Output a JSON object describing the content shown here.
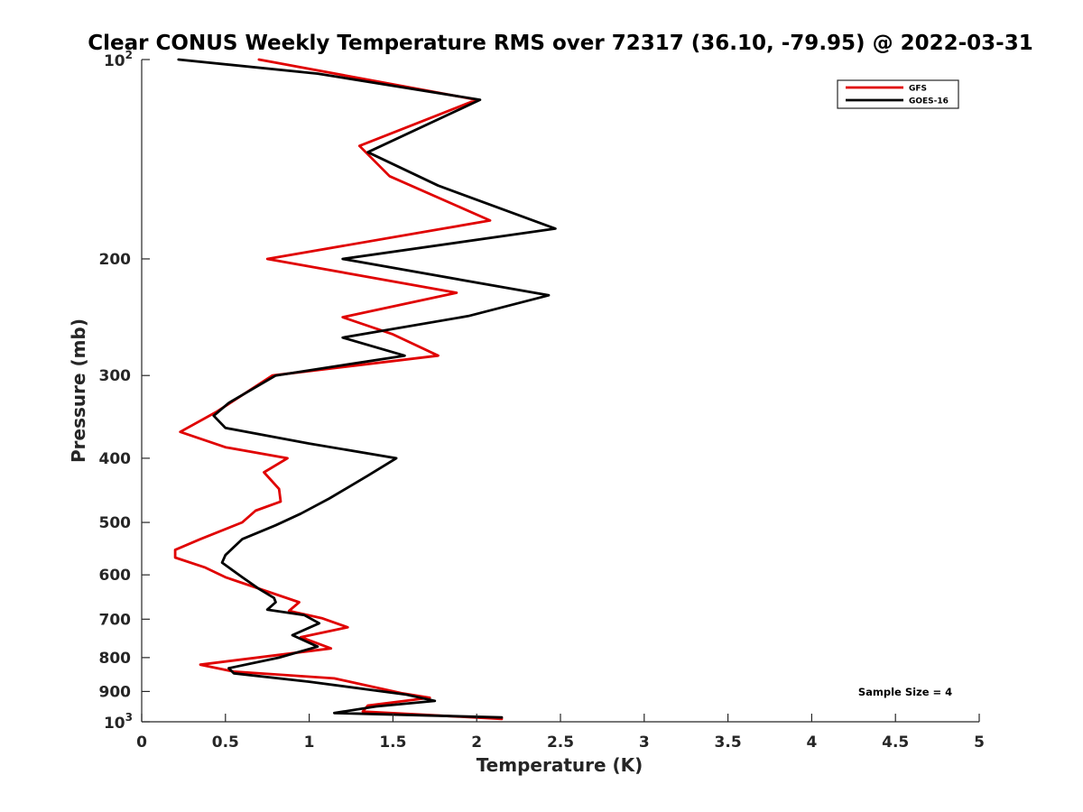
{
  "chart_data": {
    "type": "line",
    "title": "Clear CONUS Weekly Temperature RMS over 72317 (36.10, -79.95) @ 2022-03-31",
    "xlabel": "Temperature (K)",
    "ylabel": "Pressure (mb)",
    "xlim": [
      0,
      5
    ],
    "ylim": [
      100,
      1000
    ],
    "yscale": "log",
    "y_reversed": true,
    "x_ticks": [
      "0",
      "0.5",
      "1",
      "1.5",
      "2",
      "2.5",
      "3",
      "3.5",
      "4",
      "4.5",
      "5"
    ],
    "y_ticks": [
      {
        "value": 100,
        "base": "10",
        "exp": "2"
      },
      {
        "value": 200,
        "label": "200"
      },
      {
        "value": 300,
        "label": "300"
      },
      {
        "value": 400,
        "label": "400"
      },
      {
        "value": 500,
        "label": "500"
      },
      {
        "value": 600,
        "label": "600"
      },
      {
        "value": 700,
        "label": "700"
      },
      {
        "value": 800,
        "label": "800"
      },
      {
        "value": 900,
        "label": "900"
      },
      {
        "value": 1000,
        "base": "10",
        "exp": "3"
      }
    ],
    "grid": false,
    "legend_position": "top-right",
    "annotation": "Sample Size = 4",
    "series": [
      {
        "name": "GFS",
        "color": "#e00000",
        "points": [
          [
            0.7,
            100
          ],
          [
            2.0,
            115
          ],
          [
            1.3,
            135
          ],
          [
            1.48,
            150
          ],
          [
            2.08,
            175
          ],
          [
            0.75,
            200
          ],
          [
            1.88,
            225
          ],
          [
            1.2,
            245
          ],
          [
            1.5,
            260
          ],
          [
            1.77,
            280
          ],
          [
            0.78,
            300
          ],
          [
            0.45,
            340
          ],
          [
            0.23,
            365
          ],
          [
            0.5,
            385
          ],
          [
            0.87,
            400
          ],
          [
            0.73,
            420
          ],
          [
            0.82,
            445
          ],
          [
            0.83,
            465
          ],
          [
            0.68,
            480
          ],
          [
            0.6,
            500
          ],
          [
            0.35,
            530
          ],
          [
            0.2,
            550
          ],
          [
            0.2,
            565
          ],
          [
            0.38,
            585
          ],
          [
            0.5,
            605
          ],
          [
            0.94,
            660
          ],
          [
            0.88,
            680
          ],
          [
            1.08,
            698
          ],
          [
            1.23,
            720
          ],
          [
            0.95,
            745
          ],
          [
            1.13,
            775
          ],
          [
            0.35,
            820
          ],
          [
            0.55,
            840
          ],
          [
            1.15,
            860
          ],
          [
            1.55,
            905
          ],
          [
            1.72,
            920
          ],
          [
            1.35,
            945
          ],
          [
            1.32,
            965
          ],
          [
            2.15,
            990
          ]
        ]
      },
      {
        "name": "GOES-16",
        "color": "#000000",
        "points": [
          [
            0.22,
            100
          ],
          [
            1.05,
            105
          ],
          [
            2.02,
            115
          ],
          [
            1.35,
            138
          ],
          [
            1.77,
            155
          ],
          [
            2.47,
            180
          ],
          [
            1.2,
            200
          ],
          [
            2.43,
            227
          ],
          [
            1.95,
            244
          ],
          [
            1.2,
            263
          ],
          [
            1.57,
            280
          ],
          [
            0.8,
            300
          ],
          [
            0.52,
            330
          ],
          [
            0.43,
            345
          ],
          [
            0.5,
            360
          ],
          [
            1.0,
            380
          ],
          [
            1.52,
            400
          ],
          [
            1.35,
            425
          ],
          [
            1.12,
            460
          ],
          [
            0.95,
            485
          ],
          [
            0.8,
            505
          ],
          [
            0.6,
            530
          ],
          [
            0.5,
            560
          ],
          [
            0.48,
            575
          ],
          [
            0.6,
            605
          ],
          [
            0.7,
            630
          ],
          [
            0.79,
            650
          ],
          [
            0.8,
            660
          ],
          [
            0.75,
            677
          ],
          [
            0.97,
            690
          ],
          [
            1.06,
            710
          ],
          [
            0.9,
            740
          ],
          [
            1.05,
            770
          ],
          [
            0.82,
            800
          ],
          [
            0.52,
            830
          ],
          [
            0.55,
            845
          ],
          [
            1.0,
            870
          ],
          [
            1.58,
            910
          ],
          [
            1.75,
            930
          ],
          [
            1.4,
            948
          ],
          [
            1.15,
            970
          ],
          [
            2.15,
            985
          ]
        ]
      }
    ]
  }
}
